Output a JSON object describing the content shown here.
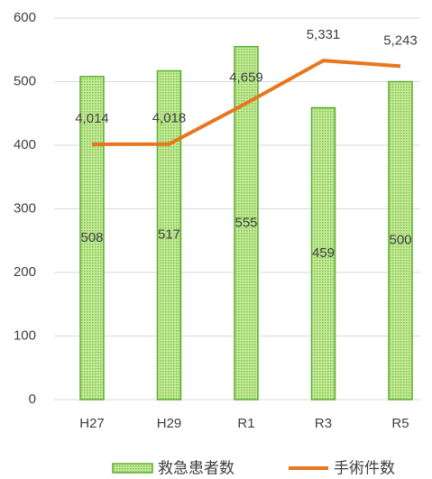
{
  "chart_data": {
    "type": "bar_line",
    "categories": [
      "H27",
      "H29",
      "R1",
      "R3",
      "R5"
    ],
    "series": [
      {
        "name": "救急患者数",
        "type": "bar",
        "color": "#8fd15a",
        "values": [
          508,
          517,
          555,
          459,
          500
        ]
      },
      {
        "name": "手術件数",
        "type": "line",
        "axis": "y2",
        "color": "#e8761e",
        "values": [
          4014,
          4018,
          4659,
          5331,
          5243
        ],
        "value_labels": [
          "4,014",
          "4,018",
          "4,659",
          "5,331",
          "5,243"
        ]
      }
    ],
    "ylim": [
      0,
      600
    ],
    "yticks": [
      0,
      100,
      200,
      300,
      400,
      500,
      600
    ],
    "y2lim": [
      0,
      6000
    ],
    "grid": true,
    "legend": "bottom"
  }
}
